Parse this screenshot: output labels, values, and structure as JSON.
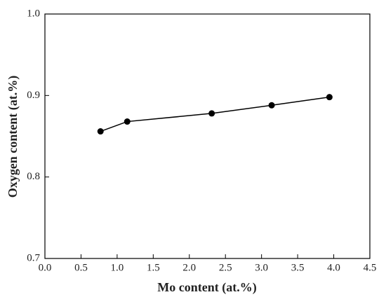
{
  "chart_data": {
    "type": "line",
    "x_label": "Mo content (at.%)",
    "y_label": "Oxygen content (at.%)",
    "x": [
      0.77,
      1.14,
      2.31,
      3.14,
      3.94
    ],
    "series": [
      {
        "color": "#000000",
        "values": [
          0.856,
          0.868,
          0.878,
          0.888,
          0.898
        ]
      }
    ],
    "xlim": [
      0,
      4.5
    ],
    "xticks": [
      {
        "value": 0,
        "label": "0.0"
      },
      0.5,
      {
        "value": 1,
        "label": "1.0"
      },
      1.5,
      {
        "value": 2,
        "label": "2.0"
      },
      2.5,
      {
        "value": 3,
        "label": "3.0"
      },
      3.5,
      {
        "value": 4,
        "label": "4.0"
      },
      4.5
    ],
    "ylim": [
      0.7,
      1.0
    ],
    "yticks": [
      0.7,
      0.8,
      0.9,
      {
        "value": 1,
        "label": "1.0"
      }
    ],
    "grid": false
  }
}
